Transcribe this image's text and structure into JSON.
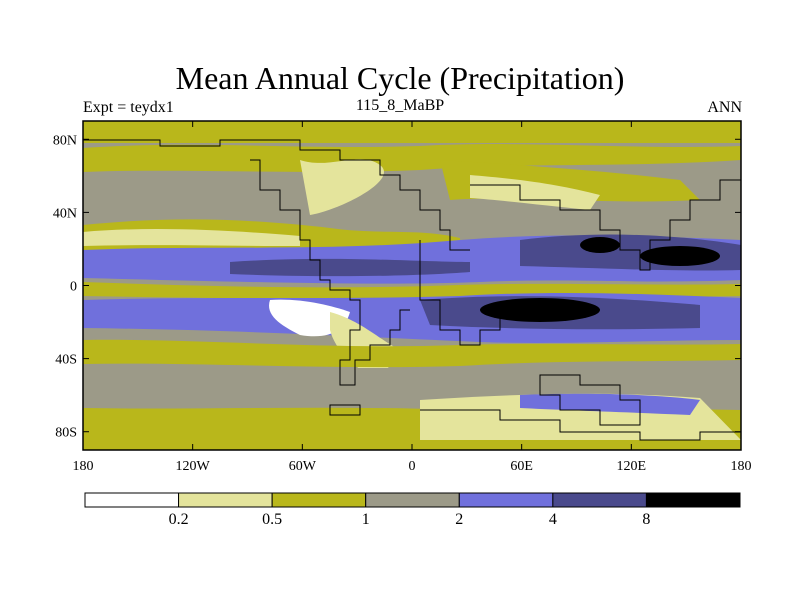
{
  "title": "Mean Annual Cycle (Precipitation)",
  "subtitle_left": "Expt = teydx1",
  "subtitle_center": "115_8_MaBP",
  "subtitle_right": "ANN",
  "x_ticks": [
    "180",
    "120W",
    "60W",
    "0",
    "60E",
    "120E",
    "180"
  ],
  "y_ticks": [
    "80N",
    "40N",
    "0",
    "40S",
    "80S"
  ],
  "colorbar": {
    "levels": [
      "0.2",
      "0.5",
      "1",
      "2",
      "4",
      "8"
    ],
    "colors": [
      "#ffffff",
      "#e4e49c",
      "#b9b71b",
      "#9c9a88",
      "#7070dc",
      "#4a4a8c",
      "#000000"
    ]
  },
  "chart_data": {
    "type": "heatmap",
    "title": "Mean Annual Cycle (Precipitation)",
    "field": "precipitation (ANN mean)",
    "experiment": "teydx1",
    "period": "115_8_MaBP",
    "x_range": [
      -180,
      180
    ],
    "y_range": [
      -90,
      90
    ],
    "x_tick_values": [
      -180,
      -120,
      -60,
      0,
      60,
      120,
      180
    ],
    "y_tick_values": [
      80,
      40,
      0,
      -40,
      -80
    ],
    "contour_levels": [
      0.2,
      0.5,
      1,
      2,
      4,
      8
    ]
  }
}
